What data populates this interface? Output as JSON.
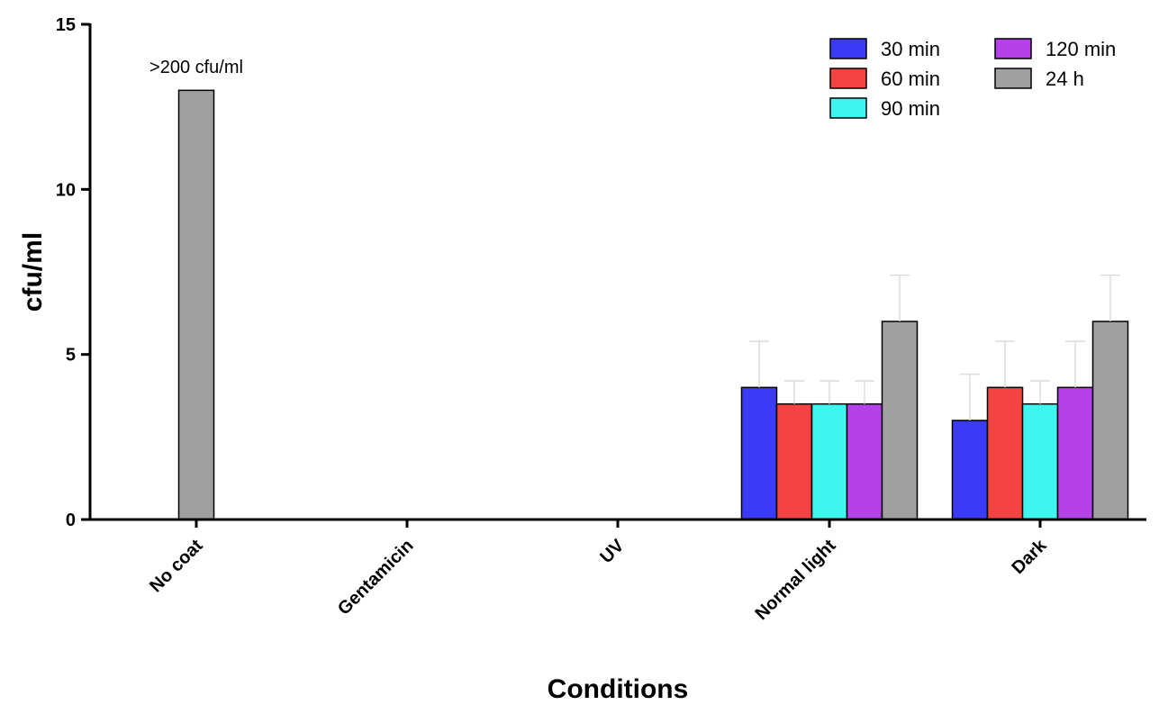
{
  "chart_data": {
    "type": "bar",
    "xlabel": "Conditions",
    "ylabel": "cfu/ml",
    "ylim": [
      0,
      15
    ],
    "yticks": [
      "0",
      "5",
      "10",
      "15"
    ],
    "categories": [
      "No coat",
      "Gentamicin",
      "UV",
      "Normal light",
      "Dark"
    ],
    "series": [
      {
        "name": "30 min",
        "color": "#3b3bf5",
        "values": [
          null,
          null,
          null,
          4,
          3
        ],
        "errors": [
          null,
          null,
          null,
          1.4,
          1.4
        ]
      },
      {
        "name": "60 min",
        "color": "#f54242",
        "values": [
          null,
          null,
          null,
          3.5,
          4
        ],
        "errors": [
          null,
          null,
          null,
          0.7,
          1.4
        ]
      },
      {
        "name": "90 min",
        "color": "#3ff5f0",
        "values": [
          null,
          null,
          null,
          3.5,
          3.5
        ],
        "errors": [
          null,
          null,
          null,
          0.7,
          0.7
        ]
      },
      {
        "name": "120 min",
        "color": "#b442e8",
        "values": [
          null,
          null,
          null,
          3.5,
          4
        ],
        "errors": [
          null,
          null,
          null,
          0.7,
          1.4
        ]
      },
      {
        "name": "24 h",
        "color": "#a0a0a3",
        "values": [
          13,
          null,
          null,
          6,
          6
        ],
        "errors": [
          null,
          null,
          null,
          1.4,
          1.4
        ]
      }
    ],
    "annotations": [
      {
        "text": ">200 cfu/ml",
        "category": "No coat"
      }
    ],
    "legend": {
      "placement": "top-right",
      "columns": 2,
      "items": [
        "30 min",
        "60 min",
        "90 min",
        "120 min",
        "24 h"
      ]
    }
  }
}
